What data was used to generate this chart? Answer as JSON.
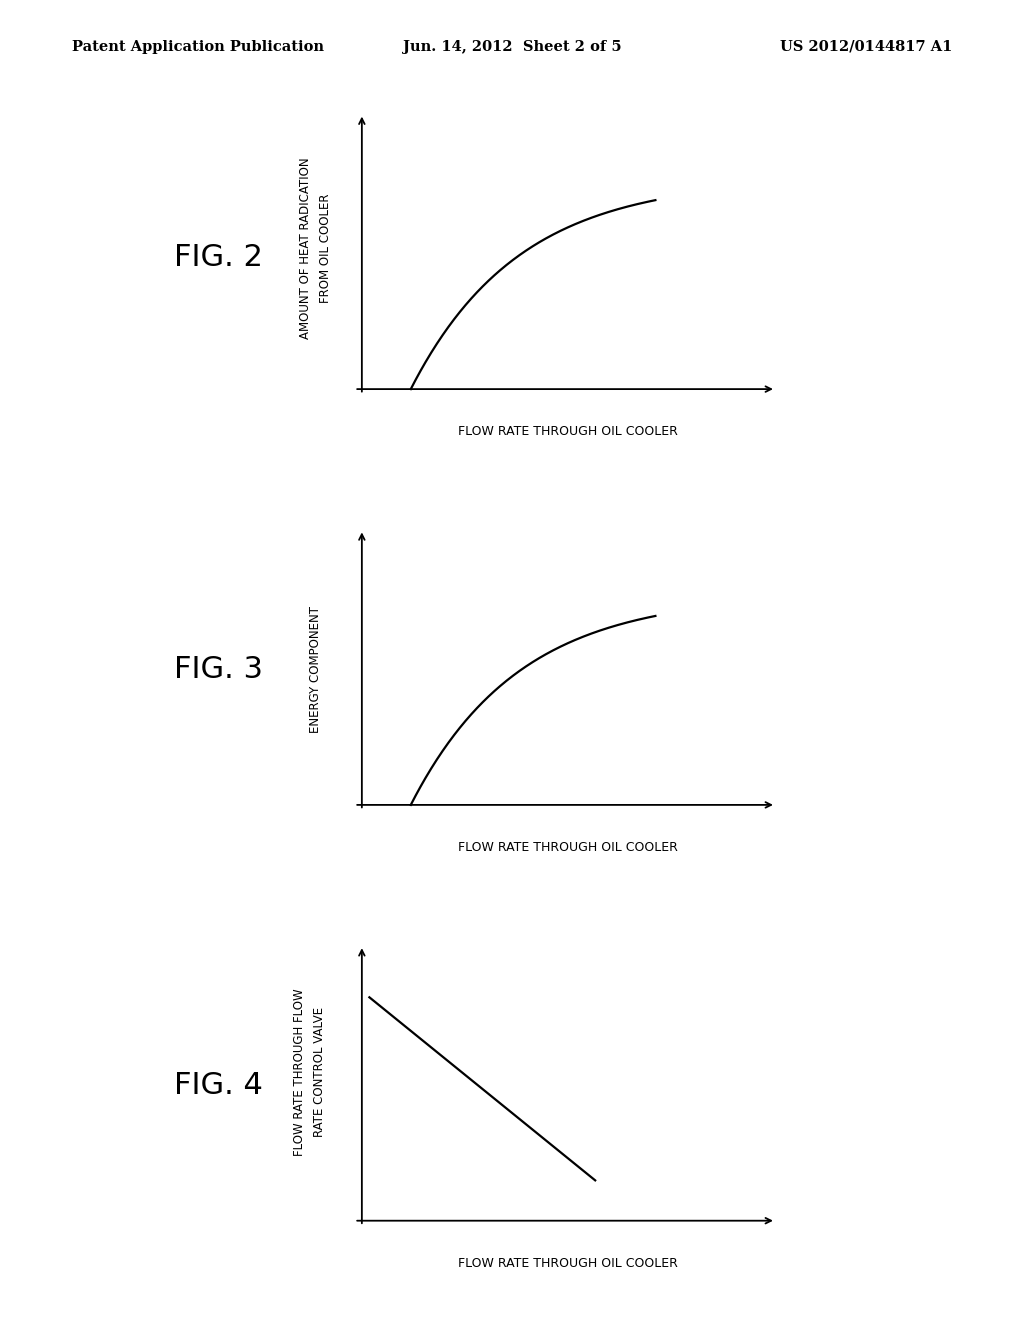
{
  "background_color": "#ffffff",
  "header_left": "Patent Application Publication",
  "header_center": "Jun. 14, 2012  Sheet 2 of 5",
  "header_right": "US 2012/0144817 A1",
  "header_fontsize": 10.5,
  "fig2_label": "FIG. 2",
  "fig3_label": "FIG. 3",
  "fig4_label": "FIG. 4",
  "fig2_ylabel_line1": "AMOUNT OF HEAT RADICATION",
  "fig2_ylabel_line2": "FROM OIL COOLER",
  "fig3_ylabel": "ENERGY COMPONENT",
  "fig4_ylabel_line1": "FLOW RATE THROUGH FLOW",
  "fig4_ylabel_line2": "RATE CONTROL VALVE",
  "fig2_xlabel": "FLOW RATE THROUGH OIL COOLER",
  "fig3_xlabel": "FLOW RATE THROUGH OIL COOLER",
  "fig4_xlabel": "FLOW RATE THROUGH OIL COOLER",
  "curve_color": "#000000",
  "line_width": 1.6,
  "label_fontsize": 9.0,
  "ylabel_fontsize": 8.5,
  "fig_label_fontsize": 22
}
